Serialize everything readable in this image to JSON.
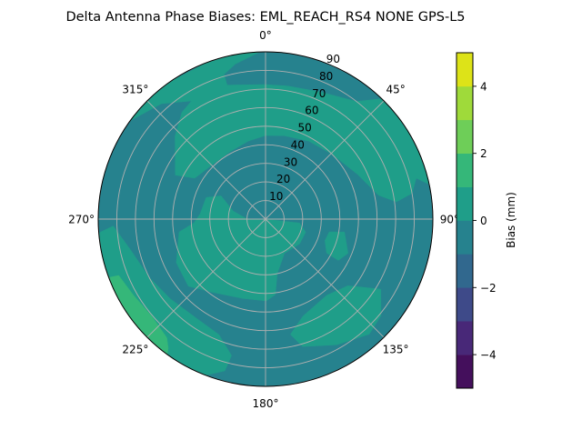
{
  "chart_data": {
    "type": "polar-contour",
    "title": "Delta Antenna Phase Biases: EML_REACH_RS4   NONE GPS-L5",
    "angular_axis": {
      "zero_location": "top",
      "direction": "clockwise",
      "tick_labels": [
        "0°",
        "45°",
        "90°",
        "135°",
        "180°",
        "225°",
        "270°",
        "315°"
      ],
      "tick_values": [
        0,
        45,
        90,
        135,
        180,
        225,
        270,
        315
      ]
    },
    "radial_axis": {
      "range": [
        0,
        90
      ],
      "tick_values": [
        10,
        20,
        30,
        40,
        50,
        60,
        70,
        80,
        90
      ],
      "tick_labels": [
        "10",
        "20",
        "30",
        "40",
        "50",
        "60",
        "70",
        "80",
        "90"
      ],
      "label_angle": 22.5
    },
    "grid": true,
    "colorbar": {
      "label": "Bias (mm)",
      "range": [
        -5,
        5
      ],
      "levels": [
        -5,
        -4,
        -3,
        -2,
        -1,
        0,
        1,
        2,
        3,
        4,
        5
      ],
      "colors": [
        "#440f5c",
        "#482878",
        "#3e4a89",
        "#31688e",
        "#26828e",
        "#1f9e89",
        "#35b779",
        "#6ece58",
        "#9fda3a",
        "#dde318"
      ],
      "tick_values": [
        -4,
        -2,
        0,
        2,
        4
      ],
      "tick_labels": [
        "−4",
        "−2",
        "0",
        "2",
        "4"
      ],
      "colormap": "viridis"
    },
    "background_level": [
      -1,
      0
    ],
    "regions": [
      {
        "level": [
          0,
          1
        ],
        "points": [
          [
            306,
            90
          ],
          [
            318,
            83.6
          ],
          [
            328,
            75
          ],
          [
            322,
            73
          ],
          [
            312.5,
            66
          ],
          [
            296,
            54
          ],
          [
            300,
            44
          ],
          [
            315,
            41
          ],
          [
            333,
            41
          ],
          [
            347.5,
            43
          ],
          [
            0,
            45
          ],
          [
            12.8,
            46
          ],
          [
            29,
            48
          ],
          [
            45.8,
            50
          ],
          [
            64,
            55
          ],
          [
            78,
            62
          ],
          [
            82.5,
            71
          ],
          [
            80,
            80
          ],
          [
            74.8,
            84
          ],
          [
            78,
            90
          ],
          [
            70,
            90
          ],
          [
            60,
            90
          ],
          [
            50,
            90
          ],
          [
            44,
            90
          ],
          [
            37.7,
            80
          ],
          [
            23.4,
            74.5
          ],
          [
            9.4,
            72.6
          ],
          [
            0,
            72.4
          ],
          [
            344,
            75
          ],
          [
            344,
            81
          ],
          [
            349,
            85
          ],
          [
            358,
            90
          ],
          [
            350,
            90
          ],
          [
            340,
            90
          ],
          [
            325,
            90
          ],
          [
            315,
            90
          ]
        ]
      },
      {
        "level": [
          0,
          1
        ],
        "points": [
          [
            274.5,
            35.3
          ],
          [
            290,
            34
          ],
          [
            297.6,
            27
          ],
          [
            284,
            18
          ],
          [
            268,
            9.2
          ],
          [
            97.4,
            3.8
          ],
          [
            96.6,
            18.4
          ],
          [
            108,
            22.7
          ],
          [
            126,
            22.7
          ],
          [
            151,
            21
          ],
          [
            168,
            30
          ],
          [
            172.6,
            41
          ],
          [
            179.4,
            44
          ],
          [
            196,
            44.4
          ],
          [
            216,
            48.7
          ],
          [
            229,
            55
          ],
          [
            244,
            53.4
          ],
          [
            261.5,
            47
          ],
          [
            267,
            38.5
          ]
        ]
      },
      {
        "level": [
          0,
          1
        ],
        "points": [
          [
            101.4,
            35
          ],
          [
            99.3,
            43
          ],
          [
            112.5,
            48
          ],
          [
            119.6,
            45
          ],
          [
            119,
            37.6
          ],
          [
            110,
            34
          ]
        ]
      },
      {
        "level": [
          0,
          1
        ],
        "points": [
          [
            167.8,
            63.5
          ],
          [
            159,
            56
          ],
          [
            141.3,
            52.6
          ],
          [
            129,
            57
          ],
          [
            121.3,
            72.6
          ],
          [
            130,
            81
          ],
          [
            138,
            83.3
          ],
          [
            150.5,
            77.7
          ],
          [
            163.8,
            71.4
          ]
        ]
      },
      {
        "level": [
          0,
          1
        ],
        "points": [
          [
            265.5,
            89
          ],
          [
            267.4,
            82
          ],
          [
            257,
            74.4
          ],
          [
            243.5,
            70
          ],
          [
            230,
            66.8
          ],
          [
            216,
            65
          ],
          [
            202,
            67
          ],
          [
            194,
            75.6
          ],
          [
            195,
            84.5
          ],
          [
            201,
            90
          ],
          [
            208,
            90
          ],
          [
            215,
            90
          ],
          [
            222,
            90
          ],
          [
            230,
            90
          ],
          [
            238,
            90
          ],
          [
            245,
            90
          ],
          [
            252,
            90
          ],
          [
            258,
            90
          ],
          [
            265,
            90
          ]
        ]
      },
      {
        "level": [
          1,
          2
        ],
        "points": [
          [
            249.5,
            89.5
          ],
          [
            249,
            84.6
          ],
          [
            240,
            82
          ],
          [
            229.4,
            80.5
          ],
          [
            219.8,
            83
          ],
          [
            217,
            87
          ],
          [
            216,
            90
          ],
          [
            221,
            90
          ],
          [
            225,
            90
          ],
          [
            230,
            90
          ],
          [
            235,
            90
          ],
          [
            240,
            90
          ],
          [
            245,
            90
          ],
          [
            250,
            90
          ]
        ]
      }
    ]
  }
}
